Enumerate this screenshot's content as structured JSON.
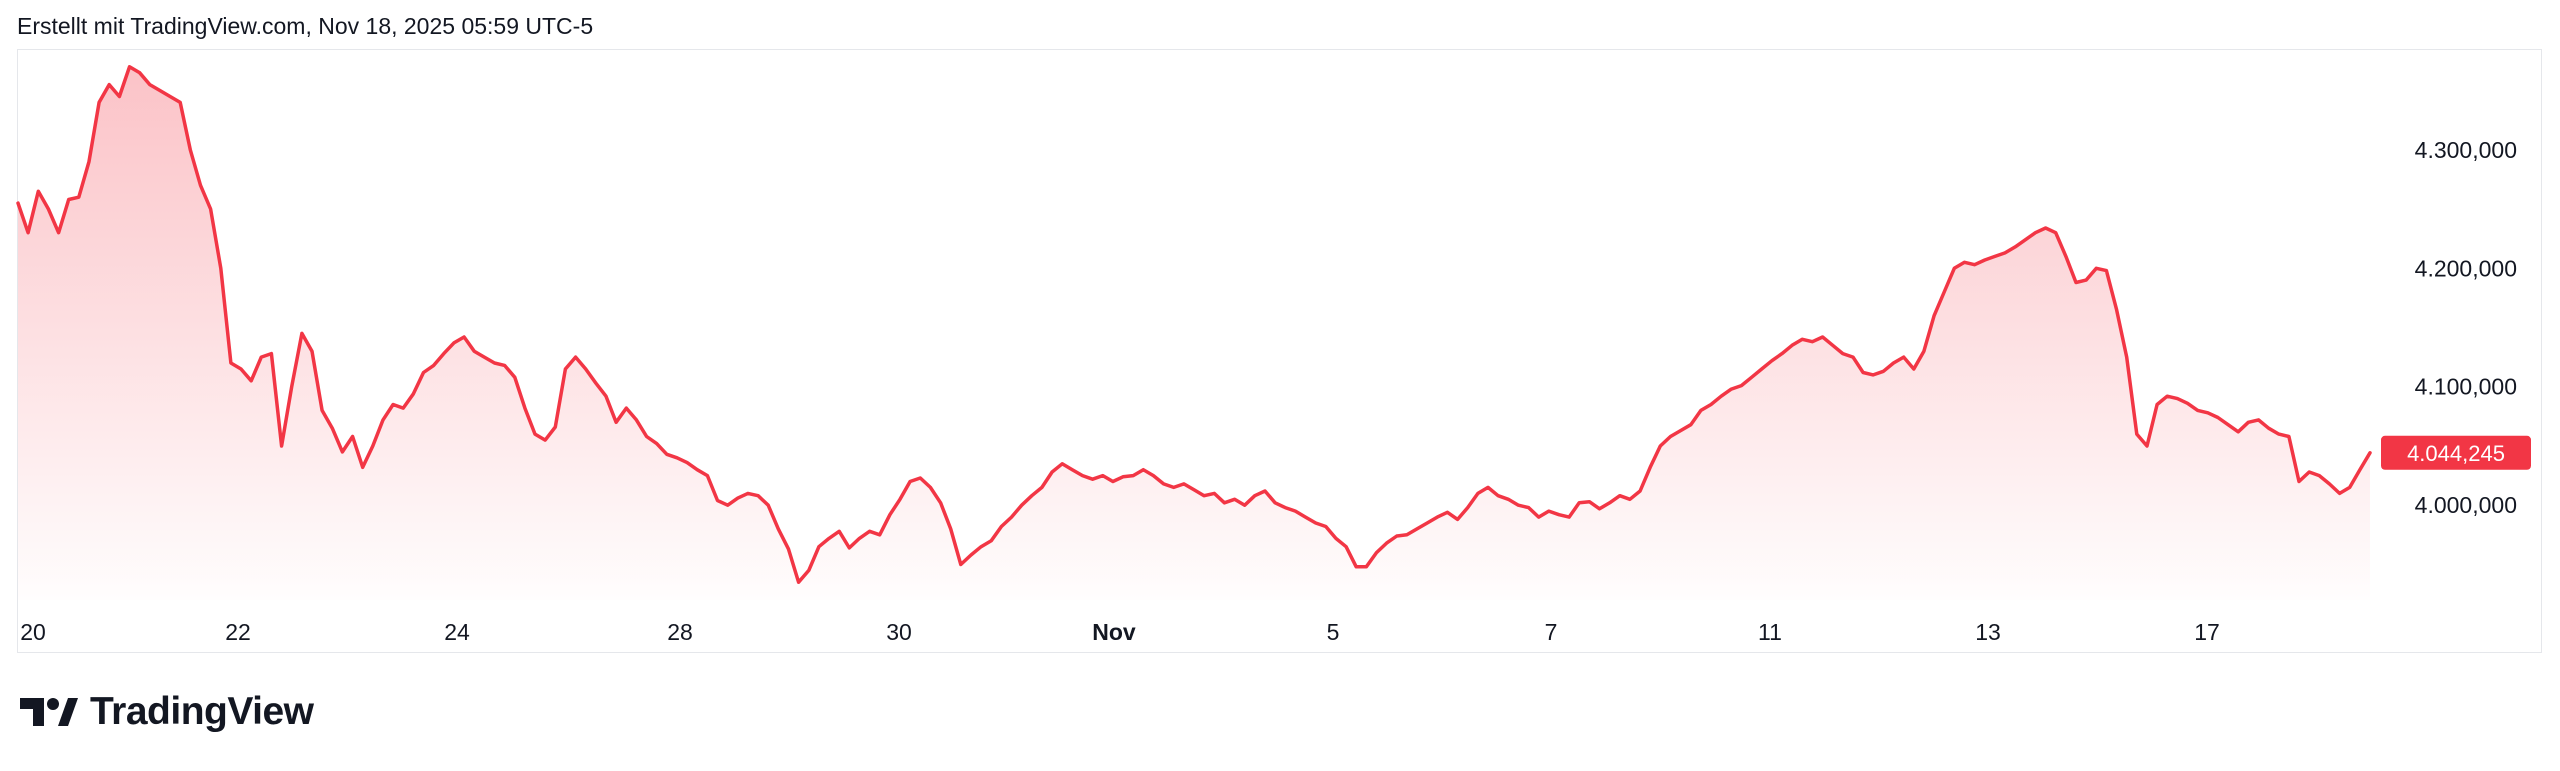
{
  "header": {
    "caption": "Erstellt mit TradingView.com, Nov 18, 2025 05:59 UTC-5"
  },
  "brand": {
    "name": "TradingView",
    "logo_icon": "tradingview-logo-icon"
  },
  "colors": {
    "line": "#f23645",
    "fill_top": "#f23645",
    "price_label_bg": "#f23645",
    "price_label_text": "#ffffff",
    "axis_text": "#131722"
  },
  "chart_data": {
    "type": "area",
    "x_tick_labels": [
      "20",
      "22",
      "24",
      "28",
      "30",
      "Nov",
      "5",
      "7",
      "11",
      "13",
      "17"
    ],
    "x_tick_bold": [
      "Nov"
    ],
    "y_tick_labels": [
      "4.300,000",
      "4.200,000",
      "4.100,000",
      "4.000,000"
    ],
    "y_ticks": [
      4300000,
      4200000,
      4100000,
      4000000
    ],
    "ylim": [
      3920000,
      4380000
    ],
    "last_price_label": "4.044,245",
    "last_price": 4044245,
    "series": [
      {
        "values": [
          4255000,
          4230000,
          4265000,
          4250000,
          4230000,
          4258000,
          4260000,
          4290000,
          4340000,
          4355000,
          4345000,
          4370000,
          4365000,
          4355000,
          4350000,
          4345000,
          4340000,
          4300000,
          4270000,
          4250000,
          4200000,
          4120000,
          4115000,
          4105000,
          4125000,
          4128000,
          4050000,
          4100000,
          4145000,
          4130000,
          4080000,
          4065000,
          4045000,
          4058000,
          4032000,
          4050000,
          4072000,
          4085000,
          4082000,
          4094000,
          4112000,
          4118000,
          4128000,
          4137000,
          4142000,
          4130000,
          4125000,
          4120000,
          4118000,
          4108000,
          4082000,
          4060000,
          4055000,
          4066000,
          4115000,
          4125000,
          4115000,
          4103000,
          4092000,
          4070000,
          4082000,
          4072000,
          4058000,
          4052000,
          4043000,
          4040000,
          4036000,
          4030000,
          4025000,
          4004000,
          4000000,
          4006000,
          4010000,
          4008000,
          4000000,
          3980000,
          3963000,
          3935000,
          3945000,
          3965000,
          3972000,
          3978000,
          3964000,
          3972000,
          3978000,
          3975000,
          3992000,
          4005000,
          4020000,
          4023000,
          4015000,
          4002000,
          3980000,
          3950000,
          3958000,
          3965000,
          3970000,
          3982000,
          3990000,
          4000000,
          4008000,
          4015000,
          4028000,
          4035000,
          4030000,
          4025000,
          4022000,
          4025000,
          4020000,
          4024000,
          4025000,
          4030000,
          4025000,
          4018000,
          4015000,
          4018000,
          4013000,
          4008000,
          4010000,
          4002000,
          4005000,
          4000000,
          4008000,
          4012000,
          4002000,
          3998000,
          3995000,
          3990000,
          3985000,
          3982000,
          3972000,
          3965000,
          3948000,
          3948000,
          3960000,
          3968000,
          3974000,
          3975000,
          3980000,
          3985000,
          3990000,
          3994000,
          3988000,
          3998000,
          4010000,
          4015000,
          4008000,
          4005000,
          4000000,
          3998000,
          3990000,
          3995000,
          3992000,
          3990000,
          4002000,
          4003000,
          3997000,
          4002000,
          4008000,
          4005000,
          4012000,
          4032000,
          4050000,
          4058000,
          4063000,
          4068000,
          4080000,
          4085000,
          4092000,
          4098000,
          4101000,
          4108000,
          4115000,
          4122000,
          4128000,
          4135000,
          4140000,
          4138000,
          4142000,
          4135000,
          4128000,
          4125000,
          4112000,
          4110000,
          4113000,
          4120000,
          4125000,
          4115000,
          4130000,
          4160000,
          4180000,
          4200000,
          4205000,
          4203000,
          4207000,
          4210000,
          4213000,
          4218000,
          4224000,
          4230000,
          4234000,
          4230000,
          4210000,
          4188000,
          4190000,
          4200000,
          4198000,
          4165000,
          4125000,
          4060000,
          4050000,
          4085000,
          4092000,
          4090000,
          4086000,
          4080000,
          4078000,
          4074000,
          4068000,
          4062000,
          4070000,
          4072000,
          4065000,
          4060000,
          4058000,
          4020000,
          4028000,
          4025000,
          4018000,
          4010000,
          4015000,
          4030000,
          4044245
        ]
      }
    ],
    "grid": false,
    "legend": "none"
  }
}
